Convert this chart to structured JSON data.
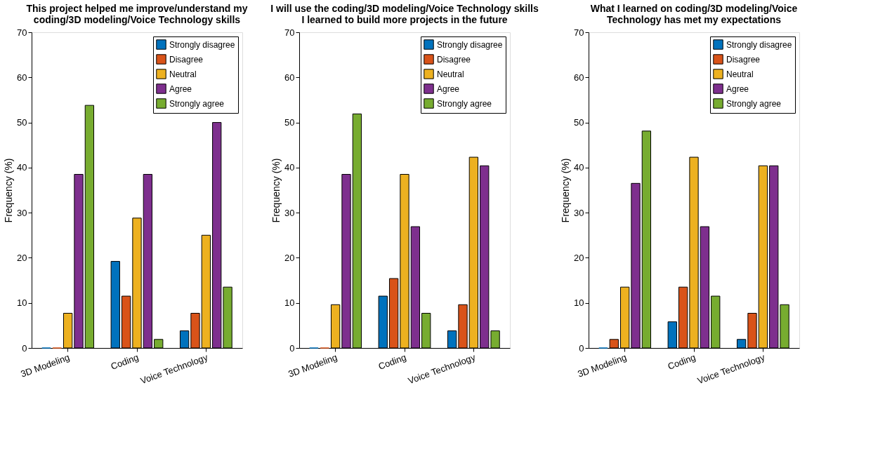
{
  "chart_data": [
    {
      "type": "bar",
      "title": "This project helped me improve/understand my coding/3D modeling/Voice Technology skills",
      "ylabel": "Frequency (%)",
      "categories": [
        "3D Modeling",
        "Coding",
        "Voice Technology"
      ],
      "ylim": [
        0,
        70
      ],
      "yticks": [
        0,
        10,
        20,
        30,
        40,
        50,
        60,
        70
      ],
      "grid": false,
      "legend": "top right",
      "series": [
        {
          "name": "Strongly disagree",
          "color": "#0072bd",
          "values": [
            0,
            19.2,
            3.8
          ]
        },
        {
          "name": "Disagree",
          "color": "#d95319",
          "values": [
            0,
            11.5,
            7.7
          ]
        },
        {
          "name": "Neutral",
          "color": "#edb120",
          "values": [
            7.7,
            28.8,
            25
          ]
        },
        {
          "name": "Agree",
          "color": "#7e2f8e",
          "values": [
            38.5,
            38.5,
            50
          ]
        },
        {
          "name": "Strongly agree",
          "color": "#77ac30",
          "values": [
            53.8,
            1.9,
            13.5
          ]
        }
      ]
    },
    {
      "type": "bar",
      "title": "I will use the coding/3D modeling/Voice Technology skills I learned to build more projects in the future",
      "ylabel": "Frequency (%)",
      "categories": [
        "3D Modeling",
        "Coding",
        "Voice Technology"
      ],
      "ylim": [
        0,
        70
      ],
      "yticks": [
        0,
        10,
        20,
        30,
        40,
        50,
        60,
        70
      ],
      "grid": false,
      "legend": "top right",
      "series": [
        {
          "name": "Strongly disagree",
          "color": "#0072bd",
          "values": [
            0,
            11.5,
            3.8
          ]
        },
        {
          "name": "Disagree",
          "color": "#d95319",
          "values": [
            0,
            15.4,
            9.6
          ]
        },
        {
          "name": "Neutral",
          "color": "#edb120",
          "values": [
            9.6,
            38.5,
            42.3
          ]
        },
        {
          "name": "Agree",
          "color": "#7e2f8e",
          "values": [
            38.5,
            26.9,
            40.4
          ]
        },
        {
          "name": "Strongly agree",
          "color": "#77ac30",
          "values": [
            51.9,
            7.7,
            3.8
          ]
        }
      ]
    },
    {
      "type": "bar",
      "title": "What I learned on coding/3D modeling/Voice Technology has met my expectations",
      "ylabel": "Frequency (%)",
      "categories": [
        "3D Modeling",
        "Coding",
        "Voice Technology"
      ],
      "ylim": [
        0,
        70
      ],
      "yticks": [
        0,
        10,
        20,
        30,
        40,
        50,
        60,
        70
      ],
      "grid": false,
      "legend": "top right",
      "series": [
        {
          "name": "Strongly disagree",
          "color": "#0072bd",
          "values": [
            0,
            5.8,
            1.9
          ]
        },
        {
          "name": "Disagree",
          "color": "#d95319",
          "values": [
            1.9,
            13.5,
            7.7
          ]
        },
        {
          "name": "Neutral",
          "color": "#edb120",
          "values": [
            13.5,
            42.3,
            40.4
          ]
        },
        {
          "name": "Agree",
          "color": "#7e2f8e",
          "values": [
            36.5,
            26.9,
            40.4
          ]
        },
        {
          "name": "Strongly agree",
          "color": "#77ac30",
          "values": [
            48.1,
            11.5,
            9.6
          ]
        }
      ]
    }
  ]
}
